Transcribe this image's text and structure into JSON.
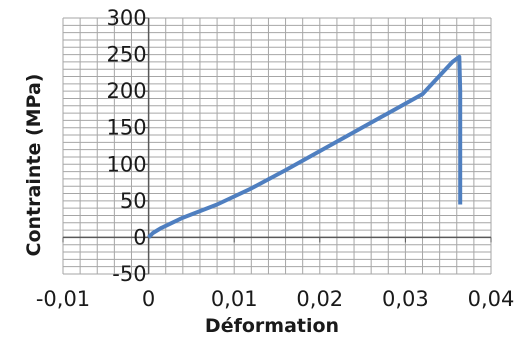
{
  "chart_data": {
    "type": "line",
    "xlabel": "Déformation",
    "ylabel": "Contrainte (MPa)",
    "xlim": [
      -0.01,
      0.04
    ],
    "ylim": [
      -50,
      300
    ],
    "x_ticks": [
      -0.01,
      0,
      0.01,
      0.02,
      0.03,
      0.04
    ],
    "x_tick_labels": [
      "-0,01",
      "0",
      "0,01",
      "0,02",
      "0,03",
      "0,04"
    ],
    "y_ticks": [
      -50,
      0,
      50,
      100,
      150,
      200,
      250,
      300
    ],
    "y_tick_labels": [
      "-50",
      "0",
      "50",
      "100",
      "150",
      "200",
      "250",
      "300"
    ],
    "grid": true,
    "legend": "none",
    "line_color": "#4F7FC0",
    "series": [
      {
        "x": [
          0,
          0.0005,
          0.0015,
          0.004,
          0.008,
          0.012,
          0.016,
          0.02,
          0.024,
          0.028,
          0.032,
          0.0355,
          0.0363,
          0.0364,
          0.0364,
          0.0364
        ],
        "y": [
          0,
          6,
          13,
          27,
          45,
          67,
          92,
          118,
          144,
          170,
          196,
          240,
          247,
          200,
          100,
          45
        ]
      }
    ]
  }
}
